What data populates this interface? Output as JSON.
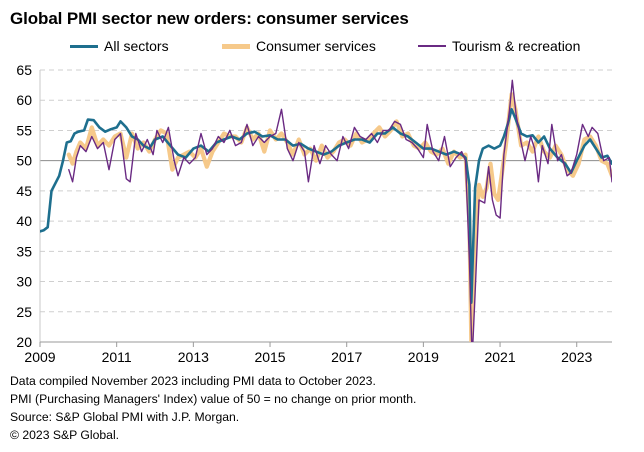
{
  "title": "Global PMI sector new orders: consumer services",
  "footnotes": [
    "Data compiled November 2023 including PMI data to October 2023.",
    "PMI (Purchasing Managers' Index) value of 50 = no change on prior month.",
    "Source: S&P Global PMI with J.P. Morgan.",
    "© 2023 S&P Global."
  ],
  "chart_data": {
    "type": "line",
    "title": "Global PMI sector new orders: consumer services",
    "xlabel": "",
    "ylabel": "",
    "ylim": [
      20,
      65
    ],
    "xlim": [
      2009.0,
      2023.92
    ],
    "yticks": [
      20,
      25,
      30,
      35,
      40,
      45,
      50,
      55,
      60,
      65
    ],
    "xticks": [
      "2009",
      "2011",
      "2013",
      "2015",
      "2017",
      "2019",
      "2021",
      "2023"
    ],
    "reference_line": 50,
    "grid": "horizontal dashed",
    "legend": "top",
    "series": [
      {
        "name": "All sectors",
        "color": "#1e6f8e",
        "points": [
          [
            2009.0,
            38.3
          ],
          [
            2009.1,
            38.5
          ],
          [
            2009.2,
            39.0
          ],
          [
            2009.3,
            45.0
          ],
          [
            2009.5,
            47.5
          ],
          [
            2009.6,
            50.0
          ],
          [
            2009.7,
            53.0
          ],
          [
            2009.8,
            53.2
          ],
          [
            2009.9,
            54.5
          ],
          [
            2010.0,
            54.8
          ],
          [
            2010.15,
            55.0
          ],
          [
            2010.25,
            56.8
          ],
          [
            2010.4,
            56.7
          ],
          [
            2010.55,
            55.5
          ],
          [
            2010.7,
            54.8
          ],
          [
            2010.85,
            55.2
          ],
          [
            2011.0,
            55.5
          ],
          [
            2011.1,
            56.5
          ],
          [
            2011.25,
            55.5
          ],
          [
            2011.4,
            54.0
          ],
          [
            2011.55,
            53.5
          ],
          [
            2011.7,
            52.5
          ],
          [
            2011.85,
            52.0
          ],
          [
            2012.0,
            53.5
          ],
          [
            2012.2,
            54.0
          ],
          [
            2012.4,
            52.5
          ],
          [
            2012.6,
            51.0
          ],
          [
            2012.8,
            50.5
          ],
          [
            2013.0,
            52.0
          ],
          [
            2013.2,
            52.5
          ],
          [
            2013.4,
            51.5
          ],
          [
            2013.6,
            53.0
          ],
          [
            2013.8,
            53.5
          ],
          [
            2014.0,
            54.0
          ],
          [
            2014.2,
            53.5
          ],
          [
            2014.4,
            54.5
          ],
          [
            2014.6,
            54.8
          ],
          [
            2014.8,
            54.0
          ],
          [
            2015.0,
            54.2
          ],
          [
            2015.2,
            53.5
          ],
          [
            2015.4,
            53.5
          ],
          [
            2015.6,
            52.5
          ],
          [
            2015.8,
            52.8
          ],
          [
            2016.0,
            52.0
          ],
          [
            2016.2,
            51.5
          ],
          [
            2016.4,
            51.0
          ],
          [
            2016.6,
            51.5
          ],
          [
            2016.8,
            52.5
          ],
          [
            2017.0,
            53.0
          ],
          [
            2017.2,
            53.5
          ],
          [
            2017.4,
            53.5
          ],
          [
            2017.6,
            53.0
          ],
          [
            2017.8,
            54.5
          ],
          [
            2018.0,
            54.5
          ],
          [
            2018.2,
            55.5
          ],
          [
            2018.4,
            54.5
          ],
          [
            2018.6,
            54.0
          ],
          [
            2018.8,
            53.0
          ],
          [
            2019.0,
            52.0
          ],
          [
            2019.2,
            52.0
          ],
          [
            2019.4,
            51.5
          ],
          [
            2019.6,
            51.0
          ],
          [
            2019.8,
            51.5
          ],
          [
            2020.0,
            51.0
          ],
          [
            2020.1,
            50.5
          ],
          [
            2020.2,
            46.0
          ],
          [
            2020.25,
            26.5
          ],
          [
            2020.35,
            45.5
          ],
          [
            2020.45,
            50.0
          ],
          [
            2020.55,
            52.0
          ],
          [
            2020.7,
            52.5
          ],
          [
            2020.85,
            52.0
          ],
          [
            2021.0,
            52.5
          ],
          [
            2021.1,
            54.0
          ],
          [
            2021.2,
            56.0
          ],
          [
            2021.3,
            58.5
          ],
          [
            2021.4,
            57.0
          ],
          [
            2021.55,
            54.5
          ],
          [
            2021.7,
            54.0
          ],
          [
            2021.85,
            54.2
          ],
          [
            2022.0,
            53.0
          ],
          [
            2022.15,
            54.0
          ],
          [
            2022.3,
            52.0
          ],
          [
            2022.5,
            50.5
          ],
          [
            2022.7,
            49.5
          ],
          [
            2022.85,
            48.0
          ],
          [
            2023.0,
            50.0
          ],
          [
            2023.2,
            52.5
          ],
          [
            2023.35,
            53.5
          ],
          [
            2023.5,
            52.0
          ],
          [
            2023.65,
            50.5
          ],
          [
            2023.8,
            50.8
          ],
          [
            2023.92,
            49.5
          ]
        ]
      },
      {
        "name": "Consumer services",
        "color": "#f6c98a",
        "points": [
          [
            2009.75,
            51.0
          ],
          [
            2009.85,
            49.5
          ],
          [
            2009.95,
            51.5
          ],
          [
            2010.05,
            53.0
          ],
          [
            2010.2,
            52.0
          ],
          [
            2010.35,
            55.5
          ],
          [
            2010.5,
            52.5
          ],
          [
            2010.65,
            53.5
          ],
          [
            2010.8,
            52.5
          ],
          [
            2010.95,
            54.0
          ],
          [
            2011.1,
            54.5
          ],
          [
            2011.25,
            50.5
          ],
          [
            2011.4,
            54.5
          ],
          [
            2011.55,
            52.0
          ],
          [
            2011.7,
            53.0
          ],
          [
            2011.85,
            51.5
          ],
          [
            2012.0,
            53.5
          ],
          [
            2012.15,
            55.0
          ],
          [
            2012.3,
            54.5
          ],
          [
            2012.45,
            48.5
          ],
          [
            2012.6,
            50.5
          ],
          [
            2012.75,
            51.0
          ],
          [
            2012.9,
            51.5
          ],
          [
            2013.05,
            50.5
          ],
          [
            2013.2,
            52.0
          ],
          [
            2013.35,
            49.0
          ],
          [
            2013.5,
            51.5
          ],
          [
            2013.65,
            53.0
          ],
          [
            2013.8,
            54.5
          ],
          [
            2013.95,
            54.0
          ],
          [
            2014.1,
            54.0
          ],
          [
            2014.25,
            53.0
          ],
          [
            2014.4,
            55.5
          ],
          [
            2014.55,
            53.5
          ],
          [
            2014.7,
            54.5
          ],
          [
            2014.85,
            51.5
          ],
          [
            2015.0,
            55.0
          ],
          [
            2015.15,
            53.5
          ],
          [
            2015.3,
            54.5
          ],
          [
            2015.45,
            53.0
          ],
          [
            2015.6,
            51.0
          ],
          [
            2015.75,
            53.5
          ],
          [
            2015.9,
            51.0
          ],
          [
            2016.05,
            52.0
          ],
          [
            2016.2,
            50.0
          ],
          [
            2016.35,
            52.5
          ],
          [
            2016.5,
            50.5
          ],
          [
            2016.65,
            51.5
          ],
          [
            2016.8,
            53.0
          ],
          [
            2016.95,
            53.5
          ],
          [
            2017.1,
            52.5
          ],
          [
            2017.25,
            54.5
          ],
          [
            2017.4,
            53.0
          ],
          [
            2017.55,
            53.5
          ],
          [
            2017.7,
            54.5
          ],
          [
            2017.85,
            55.5
          ],
          [
            2018.0,
            54.0
          ],
          [
            2018.15,
            55.0
          ],
          [
            2018.3,
            56.5
          ],
          [
            2018.45,
            54.0
          ],
          [
            2018.6,
            54.5
          ],
          [
            2018.75,
            52.5
          ],
          [
            2018.9,
            52.0
          ],
          [
            2019.05,
            53.0
          ],
          [
            2019.2,
            51.5
          ],
          [
            2019.35,
            51.0
          ],
          [
            2019.5,
            52.0
          ],
          [
            2019.65,
            49.5
          ],
          [
            2019.8,
            51.5
          ],
          [
            2019.95,
            50.5
          ],
          [
            2020.1,
            51.0
          ],
          [
            2020.2,
            40.0
          ],
          [
            2020.25,
            20.0
          ],
          [
            2020.35,
            36.0
          ],
          [
            2020.45,
            46.0
          ],
          [
            2020.55,
            44.0
          ],
          [
            2020.65,
            45.5
          ],
          [
            2020.75,
            49.5
          ],
          [
            2020.85,
            44.5
          ],
          [
            2020.95,
            43.5
          ],
          [
            2021.05,
            48.0
          ],
          [
            2021.15,
            52.5
          ],
          [
            2021.3,
            61.0
          ],
          [
            2021.4,
            58.5
          ],
          [
            2021.55,
            52.5
          ],
          [
            2021.7,
            53.0
          ],
          [
            2021.85,
            51.5
          ],
          [
            2022.0,
            54.0
          ],
          [
            2022.15,
            51.5
          ],
          [
            2022.3,
            50.5
          ],
          [
            2022.45,
            52.5
          ],
          [
            2022.6,
            51.0
          ],
          [
            2022.75,
            48.5
          ],
          [
            2022.9,
            47.5
          ],
          [
            2023.05,
            49.5
          ],
          [
            2023.2,
            53.5
          ],
          [
            2023.35,
            54.0
          ],
          [
            2023.5,
            52.5
          ],
          [
            2023.65,
            50.0
          ],
          [
            2023.8,
            49.5
          ],
          [
            2023.92,
            47.5
          ]
        ]
      },
      {
        "name": "Tourism & recreation",
        "color": "#6a2a83",
        "points": [
          [
            2009.75,
            48.5
          ],
          [
            2009.85,
            46.5
          ],
          [
            2009.95,
            50.5
          ],
          [
            2010.05,
            52.5
          ],
          [
            2010.2,
            51.5
          ],
          [
            2010.35,
            54.0
          ],
          [
            2010.5,
            52.0
          ],
          [
            2010.65,
            53.0
          ],
          [
            2010.8,
            48.5
          ],
          [
            2010.95,
            53.5
          ],
          [
            2011.1,
            54.5
          ],
          [
            2011.25,
            47.0
          ],
          [
            2011.35,
            46.5
          ],
          [
            2011.5,
            54.5
          ],
          [
            2011.65,
            51.5
          ],
          [
            2011.8,
            53.5
          ],
          [
            2011.95,
            51.0
          ],
          [
            2012.05,
            55.0
          ],
          [
            2012.2,
            53.0
          ],
          [
            2012.35,
            55.5
          ],
          [
            2012.5,
            50.0
          ],
          [
            2012.6,
            47.5
          ],
          [
            2012.75,
            50.5
          ],
          [
            2012.9,
            49.5
          ],
          [
            2013.05,
            50.5
          ],
          [
            2013.2,
            54.5
          ],
          [
            2013.35,
            51.0
          ],
          [
            2013.5,
            52.0
          ],
          [
            2013.65,
            54.0
          ],
          [
            2013.8,
            53.0
          ],
          [
            2013.95,
            55.0
          ],
          [
            2014.1,
            52.5
          ],
          [
            2014.25,
            53.0
          ],
          [
            2014.4,
            56.0
          ],
          [
            2014.55,
            52.5
          ],
          [
            2014.7,
            54.0
          ],
          [
            2014.85,
            53.0
          ],
          [
            2015.0,
            54.0
          ],
          [
            2015.15,
            54.5
          ],
          [
            2015.3,
            58.5
          ],
          [
            2015.45,
            52.0
          ],
          [
            2015.6,
            50.0
          ],
          [
            2015.75,
            53.0
          ],
          [
            2015.9,
            51.5
          ],
          [
            2016.0,
            46.5
          ],
          [
            2016.15,
            52.5
          ],
          [
            2016.3,
            49.5
          ],
          [
            2016.45,
            52.5
          ],
          [
            2016.6,
            51.0
          ],
          [
            2016.75,
            50.0
          ],
          [
            2016.9,
            54.0
          ],
          [
            2017.05,
            52.0
          ],
          [
            2017.2,
            55.5
          ],
          [
            2017.35,
            54.0
          ],
          [
            2017.5,
            53.5
          ],
          [
            2017.65,
            54.5
          ],
          [
            2017.8,
            53.0
          ],
          [
            2017.95,
            55.0
          ],
          [
            2018.1,
            55.0
          ],
          [
            2018.25,
            56.5
          ],
          [
            2018.4,
            56.0
          ],
          [
            2018.55,
            53.5
          ],
          [
            2018.7,
            53.0
          ],
          [
            2018.85,
            52.0
          ],
          [
            2019.0,
            50.5
          ],
          [
            2019.1,
            56.0
          ],
          [
            2019.25,
            51.5
          ],
          [
            2019.4,
            50.0
          ],
          [
            2019.55,
            54.0
          ],
          [
            2019.7,
            49.0
          ],
          [
            2019.85,
            50.5
          ],
          [
            2020.0,
            51.5
          ],
          [
            2020.1,
            50.0
          ],
          [
            2020.2,
            33.5
          ],
          [
            2020.27,
            17.0
          ],
          [
            2020.35,
            28.0
          ],
          [
            2020.45,
            43.5
          ],
          [
            2020.6,
            43.0
          ],
          [
            2020.7,
            49.0
          ],
          [
            2020.8,
            43.5
          ],
          [
            2020.9,
            41.0
          ],
          [
            2021.0,
            40.5
          ],
          [
            2021.1,
            51.0
          ],
          [
            2021.25,
            58.5
          ],
          [
            2021.32,
            63.3
          ],
          [
            2021.42,
            57.5
          ],
          [
            2021.55,
            53.0
          ],
          [
            2021.65,
            50.0
          ],
          [
            2021.8,
            54.0
          ],
          [
            2021.9,
            52.0
          ],
          [
            2022.0,
            46.5
          ],
          [
            2022.1,
            52.5
          ],
          [
            2022.25,
            49.5
          ],
          [
            2022.35,
            56.0
          ],
          [
            2022.5,
            50.0
          ],
          [
            2022.6,
            51.0
          ],
          [
            2022.75,
            47.5
          ],
          [
            2022.85,
            48.0
          ],
          [
            2023.0,
            51.0
          ],
          [
            2023.15,
            56.0
          ],
          [
            2023.3,
            54.0
          ],
          [
            2023.4,
            55.5
          ],
          [
            2023.55,
            54.5
          ],
          [
            2023.7,
            50.0
          ],
          [
            2023.85,
            50.5
          ],
          [
            2023.92,
            46.5
          ]
        ]
      }
    ]
  }
}
